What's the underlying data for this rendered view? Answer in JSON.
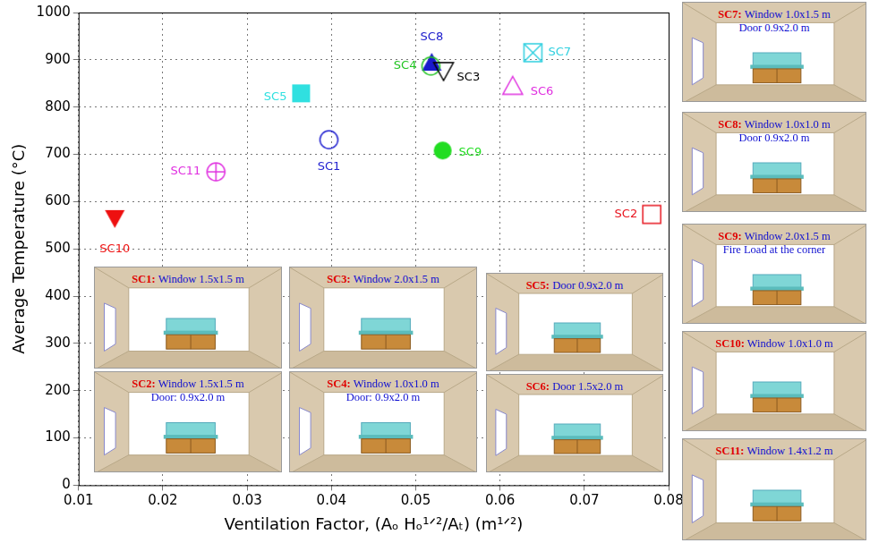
{
  "chart_data": {
    "type": "scatter",
    "x_label": "Ventilation Factor, (Aₒ Hₒ¹ᐟ²/Aₜ) (m¹ᐟ²)",
    "y_label": "Average Temperature (°C)",
    "xlim": [
      0.01,
      0.08
    ],
    "xticks": [
      0.01,
      0.02,
      0.03,
      0.04,
      0.05,
      0.06,
      0.07,
      0.08
    ],
    "ylim": [
      0,
      1000
    ],
    "yticks": [
      0,
      100,
      200,
      300,
      400,
      500,
      600,
      700,
      800,
      900,
      1000
    ],
    "grid": true,
    "series": [
      {
        "name": "SC1",
        "color": "#1f1fd0",
        "marker": "circle",
        "x": [
          0.0397
        ],
        "values": [
          731
        ]
      },
      {
        "name": "SC2",
        "color": "#e8141e",
        "marker": "square",
        "x": [
          0.078
        ],
        "values": [
          573
        ]
      },
      {
        "name": "SC3",
        "color": "#000000",
        "marker": "triangle_down",
        "x": [
          0.0533
        ],
        "values": [
          877
        ]
      },
      {
        "name": "SC4",
        "color": "#22c422",
        "marker": "circle",
        "x": [
          0.0518
        ],
        "values": [
          887
        ]
      },
      {
        "name": "SC5",
        "color": "#30e0e0",
        "marker": "filled_square",
        "x": [
          0.0364
        ],
        "values": [
          829
        ]
      },
      {
        "name": "SC6",
        "color": "#e030e0",
        "marker": "triangle",
        "x": [
          0.0615
        ],
        "values": [
          844
        ]
      },
      {
        "name": "SC7",
        "color": "#30d0e0",
        "marker": "crossed_square",
        "x": [
          0.0639
        ],
        "values": [
          915
        ]
      },
      {
        "name": "SC8",
        "color": "#1a1acc",
        "marker": "filled_triangle",
        "x": [
          0.0519
        ],
        "values": [
          894
        ]
      },
      {
        "name": "SC9",
        "color": "#22dd22",
        "marker": "filled_circle",
        "x": [
          0.0532
        ],
        "values": [
          708
        ]
      },
      {
        "name": "SC10",
        "color": "#ee1010",
        "marker": "filled_triangle_down",
        "x": [
          0.0143
        ],
        "values": [
          565
        ]
      },
      {
        "name": "SC11",
        "color": "#e030e0",
        "marker": "crossed_circle",
        "x": [
          0.0263
        ],
        "values": [
          663
        ]
      }
    ]
  },
  "scenarios": [
    {
      "title": "SC1:",
      "lines": [
        "Window 1.5x1.5 m"
      ]
    },
    {
      "title": "SC2:",
      "lines": [
        "Window 1.5x1.5 m",
        "Door: 0.9x2.0 m"
      ]
    },
    {
      "title": "SC3:",
      "lines": [
        "Window 2.0x1.5 m"
      ]
    },
    {
      "title": "SC4:",
      "lines": [
        "Window 1.0x1.0 m",
        "Door: 0.9x2.0 m"
      ]
    },
    {
      "title": "SC5:",
      "lines": [
        "Door 0.9x2.0 m"
      ]
    },
    {
      "title": "SC6:",
      "lines": [
        "Door 1.5x2.0 m"
      ]
    },
    {
      "title": "SC7:",
      "lines": [
        "Window 1.0x1.5 m",
        "Door 0.9x2.0 m"
      ]
    },
    {
      "title": "SC8:",
      "lines": [
        "Window 1.0x1.0 m",
        "Door 0.9x2.0 m"
      ]
    },
    {
      "title": "SC9:",
      "lines": [
        "Window 2.0x1.5 m",
        "Fire Load at the corner"
      ]
    },
    {
      "title": "SC10:",
      "lines": [
        "Window 1.0x1.0 m"
      ]
    },
    {
      "title": "SC11:",
      "lines": [
        "Window 1.4x1.2 m"
      ]
    }
  ]
}
